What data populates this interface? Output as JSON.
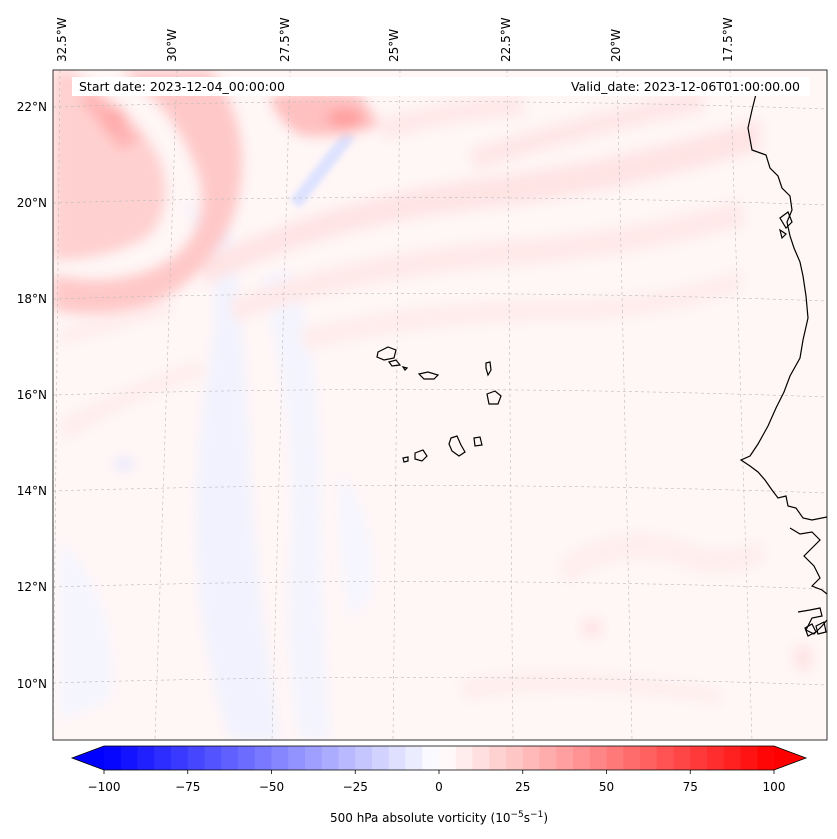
{
  "map": {
    "start_date": "Start date: 2023-12-04_00:00:00",
    "valid_date": "Valid_date: 2023-12-06T01:00:00.00",
    "lon_labels": [
      "32.5°W",
      "30°W",
      "27.5°W",
      "25°W",
      "22.5°W",
      "20°W",
      "17.5°W"
    ],
    "lat_labels": [
      "22°N",
      "20°N",
      "18°N",
      "16°N",
      "14°N",
      "12°N",
      "10°N"
    ]
  },
  "colorbar": {
    "ticks": [
      "−100",
      "−75",
      "−50",
      "−25",
      "0",
      "25",
      "50",
      "75",
      "100"
    ],
    "label_main": "500 hPa absolute vorticity (10",
    "label_exp1": "−5",
    "label_mid": "s",
    "label_exp2": "−1",
    "label_end": ")",
    "min_color": "#0000ff",
    "mid_color": "#ffffff",
    "max_color": "#ff0000"
  },
  "colors": {
    "coastline": "#000000",
    "gridline": "#bbbbbb",
    "background_tint": "#fff6f6"
  }
}
